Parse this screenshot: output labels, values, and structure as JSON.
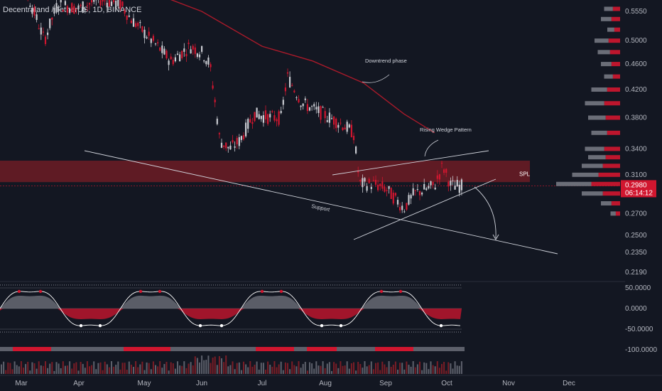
{
  "symbol_line": "Decentraland / TetherUS, 1D, BINANCE",
  "colors": {
    "background": "#131722",
    "bear": "#d1162f",
    "bull": "#c9cbd1",
    "ma": "#a81a2a",
    "zone": "#7a1d26",
    "axis_text": "#b2b5be",
    "price_badge": "#d1162f"
  },
  "chart_data": {
    "type": "candlestick",
    "title": "",
    "symbol": "MANA/USDT",
    "interval": "1D",
    "price_axis": {
      "scale": "log",
      "ticks": [
        "0.5550",
        "0.5000",
        "0.4600",
        "0.4200",
        "0.3800",
        "0.3400",
        "0.3100",
        "0.2700",
        "0.2500",
        "0.2350",
        "0.2190"
      ]
    },
    "time_axis": {
      "ticks": [
        "Mar",
        "Apr",
        "May",
        "Jun",
        "Jul",
        "Aug",
        "Sep",
        "Oct",
        "Nov",
        "Dec"
      ]
    },
    "last_price": "0.2980",
    "countdown": "06:14:12",
    "zone_label": "SPL",
    "annotations": [
      "Downtrend phase",
      "Rising Wedge Pattern",
      "Support"
    ],
    "oscillator": {
      "ticks": [
        "50.0000",
        "0.0000",
        "-50.0000",
        "-100.0000"
      ],
      "range": [
        -100,
        60
      ]
    },
    "price_path": [
      [
        "2023-03-01",
        0.62
      ],
      [
        "2023-03-08",
        0.55
      ],
      [
        "2023-03-13",
        0.5
      ],
      [
        "2023-03-20",
        0.57
      ],
      [
        "2023-04-01",
        0.56
      ],
      [
        "2023-04-10",
        0.58
      ],
      [
        "2023-04-20",
        0.57
      ],
      [
        "2023-04-25",
        0.54
      ],
      [
        "2023-05-05",
        0.5
      ],
      [
        "2023-05-15",
        0.465
      ],
      [
        "2023-05-25",
        0.49
      ],
      [
        "2023-06-01",
        0.48
      ],
      [
        "2023-06-05",
        0.46
      ],
      [
        "2023-06-10",
        0.35
      ],
      [
        "2023-06-15",
        0.34
      ],
      [
        "2023-06-20",
        0.35
      ],
      [
        "2023-06-27",
        0.385
      ],
      [
        "2023-07-05",
        0.38
      ],
      [
        "2023-07-10",
        0.38
      ],
      [
        "2023-07-13",
        0.44
      ],
      [
        "2023-07-20",
        0.4
      ],
      [
        "2023-07-30",
        0.385
      ],
      [
        "2023-08-10",
        0.37
      ],
      [
        "2023-08-15",
        0.36
      ],
      [
        "2023-08-18",
        0.3
      ],
      [
        "2023-08-25",
        0.3
      ],
      [
        "2023-09-01",
        0.295
      ],
      [
        "2023-09-10",
        0.275
      ],
      [
        "2023-09-15",
        0.29
      ],
      [
        "2023-09-25",
        0.298
      ],
      [
        "2023-09-29",
        0.32
      ],
      [
        "2023-10-03",
        0.298
      ]
    ],
    "moving_average": [
      [
        "2023-05-01",
        0.6
      ],
      [
        "2023-06-01",
        0.555
      ],
      [
        "2023-07-01",
        0.49
      ],
      [
        "2023-07-25",
        0.465
      ],
      [
        "2023-08-20",
        0.43
      ],
      [
        "2023-09-10",
        0.385
      ],
      [
        "2023-09-25",
        0.36
      ]
    ],
    "volume_profile_levels": [
      [
        0.56,
        0.25
      ],
      [
        0.54,
        0.3
      ],
      [
        0.52,
        0.2
      ],
      [
        0.5,
        0.4
      ],
      [
        0.48,
        0.35
      ],
      [
        0.46,
        0.3
      ],
      [
        0.44,
        0.25
      ],
      [
        0.42,
        0.45
      ],
      [
        0.4,
        0.55
      ],
      [
        0.38,
        0.5
      ],
      [
        0.36,
        0.45
      ],
      [
        0.34,
        0.55
      ],
      [
        0.33,
        0.5
      ],
      [
        0.32,
        0.6
      ],
      [
        0.31,
        0.75
      ],
      [
        0.3,
        1.0
      ],
      [
        0.29,
        0.6
      ],
      [
        0.28,
        0.3
      ],
      [
        0.27,
        0.15
      ]
    ]
  }
}
